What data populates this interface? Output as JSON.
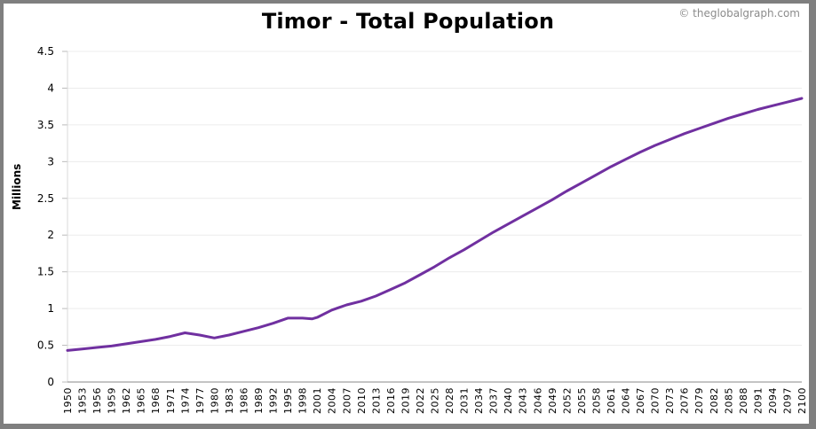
{
  "header": {
    "title": "Timor  - Total Population",
    "credit": "© theglobalgraph.com"
  },
  "colors": {
    "line": "#7030a0",
    "gridline": "#ececec",
    "axis": "#888888",
    "frame": "#7f7f7f"
  },
  "chart_data": {
    "type": "line",
    "title": "Timor  - Total Population",
    "xlabel": "",
    "ylabel": "Millions",
    "ylim": [
      0,
      4.5
    ],
    "xlim": [
      1950,
      2100
    ],
    "grid": true,
    "legend": "none",
    "y_ticks": [
      "0",
      "0.5",
      "1",
      "1.5",
      "2",
      "2.5",
      "3",
      "3.5",
      "4",
      "4.5"
    ],
    "x_ticks": [
      "1950",
      "1953",
      "1956",
      "1959",
      "1962",
      "1965",
      "1968",
      "1971",
      "1974",
      "1977",
      "1980",
      "1983",
      "1986",
      "1989",
      "1992",
      "1995",
      "1998",
      "2001",
      "2004",
      "2007",
      "2010",
      "2013",
      "2016",
      "2019",
      "2022",
      "2025",
      "2028",
      "2031",
      "2034",
      "2037",
      "2040",
      "2043",
      "2046",
      "2049",
      "2052",
      "2055",
      "2058",
      "2061",
      "2064",
      "2067",
      "2070",
      "2073",
      "2076",
      "2079",
      "2082",
      "2085",
      "2088",
      "2091",
      "2094",
      "2097",
      "2100"
    ],
    "series": [
      {
        "name": "Total Population (Millions)",
        "x": [
          1950,
          1953,
          1956,
          1959,
          1962,
          1965,
          1968,
          1971,
          1974,
          1977,
          1980,
          1983,
          1986,
          1989,
          1992,
          1995,
          1998,
          2000,
          2001,
          2004,
          2007,
          2010,
          2013,
          2016,
          2019,
          2022,
          2025,
          2028,
          2031,
          2034,
          2037,
          2040,
          2043,
          2046,
          2049,
          2052,
          2055,
          2058,
          2061,
          2064,
          2067,
          2070,
          2073,
          2076,
          2079,
          2082,
          2085,
          2088,
          2091,
          2094,
          2097,
          2100
        ],
        "values": [
          0.43,
          0.45,
          0.47,
          0.49,
          0.52,
          0.55,
          0.58,
          0.62,
          0.67,
          0.64,
          0.6,
          0.64,
          0.69,
          0.74,
          0.8,
          0.87,
          0.87,
          0.86,
          0.88,
          0.98,
          1.05,
          1.1,
          1.17,
          1.26,
          1.35,
          1.46,
          1.57,
          1.69,
          1.8,
          1.92,
          2.04,
          2.15,
          2.26,
          2.37,
          2.48,
          2.6,
          2.71,
          2.82,
          2.93,
          3.03,
          3.13,
          3.22,
          3.3,
          3.38,
          3.45,
          3.52,
          3.59,
          3.65,
          3.71,
          3.76,
          3.81,
          3.86
        ]
      }
    ]
  }
}
